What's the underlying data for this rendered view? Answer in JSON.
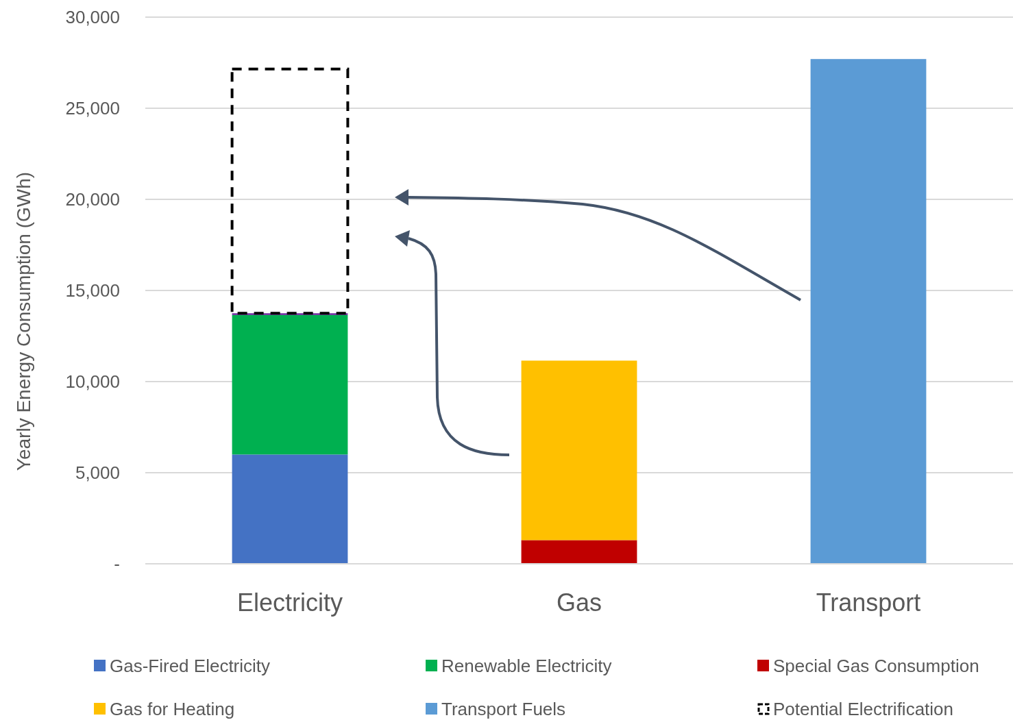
{
  "chart_data": {
    "type": "bar",
    "stacked": true,
    "ylabel": "Yearly Energy Consumption (GWh)",
    "categories": [
      "Electricity",
      "Gas",
      "Transport"
    ],
    "series": [
      {
        "name": "Gas-Fired Electricity",
        "color": "#4472c4",
        "values": [
          6000,
          null,
          null
        ]
      },
      {
        "name": "Renewable Electricity",
        "color": "#00b050",
        "values": [
          7650,
          null,
          null
        ]
      },
      {
        "color": "#7030a0",
        "values": [
          100,
          null,
          null
        ]
      },
      {
        "name": "Special Gas Consumption",
        "color": "#c00000",
        "values": [
          null,
          1300,
          null
        ]
      },
      {
        "name": "Gas for Heating",
        "color": "#ffc000",
        "values": [
          null,
          9850,
          null
        ]
      },
      {
        "name": "Transport Fuels",
        "color": "#5b9bd5",
        "values": [
          null,
          null,
          27700
        ]
      },
      {
        "name": "Potential Electrification",
        "color": "#000000",
        "line_style": "dashed",
        "values": [
          13400,
          null,
          null
        ]
      }
    ],
    "ylim": [
      0,
      30000
    ],
    "yticks": [
      {
        "value": 0,
        "label": "-"
      },
      {
        "value": 5000,
        "label": "5,000"
      },
      {
        "value": 10000,
        "label": "10,000"
      },
      {
        "value": 15000,
        "label": "15,000"
      },
      {
        "value": 20000,
        "label": "20,000"
      },
      {
        "value": 25000,
        "label": "25,000"
      },
      {
        "value": 30000,
        "label": "30,000"
      }
    ],
    "grid": "y",
    "legend": "bottom"
  }
}
